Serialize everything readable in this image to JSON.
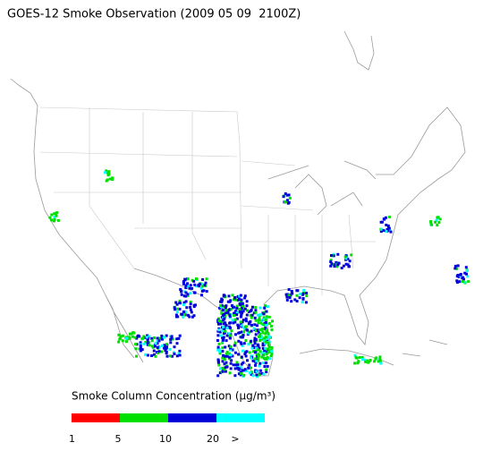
{
  "title": "GOES-12 Smoke Observation (2009 05 09  2100Z)",
  "legend": {
    "label": "Smoke Column Concentration (µg/m³)",
    "colors": [
      "#ff0000",
      "#00e000",
      "#0000d8",
      "#00ffff"
    ],
    "ticks": [
      "1",
      "5",
      "10",
      "20",
      ">"
    ]
  }
}
